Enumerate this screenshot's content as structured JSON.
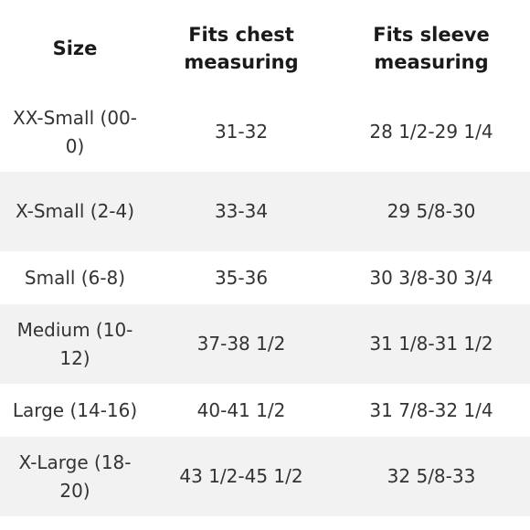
{
  "table": {
    "headers": [
      "Size",
      "Fits chest measuring",
      "Fits sleeve measuring"
    ],
    "rows": [
      [
        "XX-Small (00-0)",
        "31-32",
        "28 1/2-29 1/4"
      ],
      [
        "X-Small (2-4)",
        "33-34",
        "29 5/8-30"
      ],
      [
        "Small (6-8)",
        "35-36",
        "30 3/8-30 3/4"
      ],
      [
        "Medium (10-12)",
        "37-38 1/2",
        "31 1/8-31 1/2"
      ],
      [
        "Large (14-16)",
        "40-41 1/2",
        "31 7/8-32 1/4"
      ],
      [
        "X-Large (18-20)",
        "43 1/2-45 1/2",
        "32 5/8-33"
      ]
    ],
    "stripe_color": "#f2f2f2",
    "text_color": "#333333"
  }
}
